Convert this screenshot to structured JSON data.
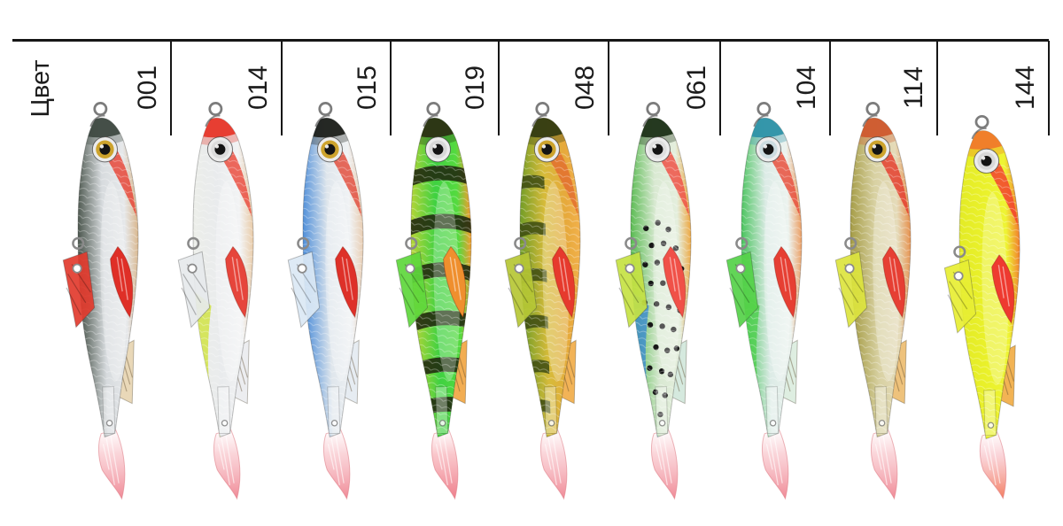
{
  "header": {
    "row_label": "Цвет"
  },
  "line_color": "#161616",
  "text_color": "#1c1c1c",
  "columns": [
    {
      "code": "001",
      "fish": {
        "cap": "#3f4a42",
        "blush": "#e6483a",
        "back": "#4a554c",
        "mid": "#d7dbde",
        "belly": "#e6e8ea",
        "edge": "#d9b78e",
        "lowerLeft": "",
        "pect": "#df2f27",
        "blade": "#e23b2e",
        "dorsal": "#e6d3ae",
        "eye": "#cda32d",
        "pattern": "none",
        "stripe": "",
        "tail": "#f6b2ba",
        "tailTip": "#ee7d8b"
      }
    },
    {
      "code": "014",
      "fish": {
        "cap": "#e7382b",
        "blush": "#ea4f41",
        "back": "#eceee9",
        "mid": "#e9ebed",
        "belly": "#f2f3f4",
        "edge": "#e9cba8",
        "lowerLeft": "#cfe23b",
        "pect": "#e6453b",
        "blade": "#e6e9ec",
        "dorsal": "#e9ebee",
        "eye": "#dcdcdc",
        "pattern": "none",
        "stripe": "",
        "tail": "#f6b2ba",
        "tailTip": "#ee7d8b"
      }
    },
    {
      "code": "015",
      "fish": {
        "cap": "#1f211c",
        "blush": "#e2503f",
        "back": "#4e8ed9",
        "mid": "#dfe6ec",
        "belly": "#f0f2f4",
        "edge": "#e8cdb2",
        "lowerLeft": "",
        "pect": "#de3129",
        "blade": "#dbe8f4",
        "dorsal": "#e2e9f0",
        "eye": "#cda32d",
        "pattern": "none",
        "stripe": "",
        "tail": "#f6b2ba",
        "tailTip": "#ee7d8b"
      }
    },
    {
      "code": "019",
      "fish": {
        "cap": "#2c3114",
        "blush": "",
        "back": "#b7d437",
        "mid": "#3fd141",
        "belly": "#55da3f",
        "edge": "#f29b2e",
        "lowerLeft": "",
        "pect": "#ef8f2e",
        "blade": "#5ed73c",
        "dorsal": "#f0a23a",
        "eye": "#d8d8d8",
        "pattern": "stripes",
        "stripe": "#20270f",
        "tail": "#f59aa2",
        "tailTip": "#ec6f7e"
      }
    },
    {
      "code": "048",
      "fish": {
        "cap": "#343c12",
        "blush": "#e2702f",
        "back": "#6f9c26",
        "mid": "#d6bb3a",
        "belly": "#e7a93c",
        "edge": "#f2b14c",
        "lowerLeft": "",
        "pect": "#e63a2d",
        "blade": "#b6c735",
        "dorsal": "#f0a940",
        "eye": "#cda32d",
        "pattern": "stripesLeft",
        "stripe": "#3c4a12",
        "tail": "#f6b2ba",
        "tailTip": "#ee7d8b"
      }
    },
    {
      "code": "061",
      "fish": {
        "cap": "#1f3319",
        "blush": "#ef5246",
        "back": "#58ba50",
        "mid": "#d9e9d2",
        "belly": "#e4eedd",
        "edge": "#eda843",
        "lowerLeft": "#3c8ad2",
        "pect": "#f05148",
        "blade": "#c6e243",
        "dorsal": "#cfe6da",
        "eye": "#dedede",
        "pattern": "spots",
        "stripe": "#161616",
        "tail": "#f6b2ba",
        "tailTip": "#ee7d8b"
      }
    },
    {
      "code": "104",
      "fish": {
        "cap": "#2e92a8",
        "blush": "#e8503d",
        "back": "#48c35c",
        "mid": "#dcebe6",
        "belly": "#ecf3ef",
        "edge": "#eb9e63",
        "lowerLeft": "#4fd04d",
        "pect": "#e63f33",
        "blade": "#55d149",
        "dorsal": "#d9ecdd",
        "eye": "#ccdce0",
        "pattern": "none",
        "stripe": "",
        "tail": "#f6b2ba",
        "tailTip": "#ee7d8b"
      }
    },
    {
      "code": "114",
      "fish": {
        "cap": "#cf5a2e",
        "blush": "#e4402f",
        "back": "#a49b44",
        "mid": "#d8d1a2",
        "belly": "#e5dbba",
        "edge": "#e6914e",
        "lowerLeft": "",
        "pect": "#e63f33",
        "blade": "#dce43e",
        "dorsal": "#ecb96a",
        "eye": "#cda32d",
        "pattern": "none",
        "stripe": "",
        "tail": "#f6b2ba",
        "tailTip": "#ee7d8b"
      }
    },
    {
      "code": "144",
      "fish": {
        "cap": "#f07a2a",
        "blush": "#f2422e",
        "back": "#e3eb26",
        "mid": "#eaf12b",
        "belly": "#eef434",
        "edge": "#f27e2d",
        "lowerLeft": "",
        "pect": "#ee3a30",
        "blade": "#e7ee33",
        "dorsal": "#f0a93c",
        "eye": "#d8d8d8",
        "pattern": "none",
        "stripe": "",
        "tail": "#f6b2ba",
        "tailTip": "#f2704f"
      }
    }
  ]
}
